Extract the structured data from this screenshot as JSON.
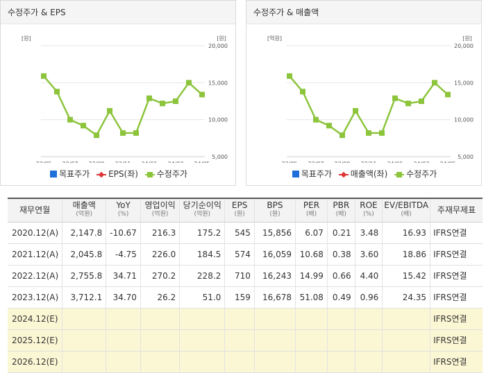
{
  "charts": {
    "eps": {
      "title": "수정주가 & EPS",
      "left_unit": "[원]",
      "right_unit": "[원]",
      "legend": [
        "목표주가",
        "EPS(좌)",
        "수정주가"
      ]
    },
    "sales": {
      "title": "수정주가 & 매출액",
      "left_unit": "[억원]",
      "right_unit": "[원]",
      "legend": [
        "목표주가",
        "매출액(좌)",
        "수정주가"
      ]
    }
  },
  "chart_data": {
    "type": "line",
    "x": [
      "23/05",
      "23/06",
      "23/07",
      "23/08",
      "23/09",
      "23/10",
      "23/11",
      "23/12",
      "24/01",
      "24/02",
      "24/03",
      "24/04",
      "24/05"
    ],
    "x_tick_labels": [
      "23/05",
      "23/07",
      "23/09",
      "23/11",
      "24/01",
      "24/03",
      "24/05"
    ],
    "y_right_ticks": [
      "20,000",
      "15,000",
      "10,000",
      "5,000"
    ],
    "ylim_right": [
      5000,
      20000
    ],
    "series": [
      {
        "name": "수정주가",
        "values": [
          15900,
          13800,
          10000,
          9200,
          7900,
          11200,
          8200,
          8200,
          12900,
          12200,
          12500,
          15000,
          13400
        ],
        "color": "#8cc43c",
        "axis": "right"
      }
    ],
    "grid": true,
    "legend_position": "bottom"
  },
  "table": {
    "headers": [
      {
        "label": "재무연월",
        "sub": ""
      },
      {
        "label": "매출액",
        "sub": "(억원)"
      },
      {
        "label": "YoY",
        "sub": "(%)"
      },
      {
        "label": "영업이익",
        "sub": "(억원)"
      },
      {
        "label": "당기순이익",
        "sub": "(억원)"
      },
      {
        "label": "EPS",
        "sub": "(원)"
      },
      {
        "label": "BPS",
        "sub": "(원)"
      },
      {
        "label": "PER",
        "sub": "(배)"
      },
      {
        "label": "PBR",
        "sub": "(배)"
      },
      {
        "label": "ROE",
        "sub": "(%)"
      },
      {
        "label": "EV/EBITDA",
        "sub": "(배)"
      },
      {
        "label": "주재무제표",
        "sub": ""
      }
    ],
    "rows": [
      [
        "2020.12(A)",
        "2,147.8",
        "-10.67",
        "216.3",
        "175.2",
        "545",
        "15,856",
        "6.07",
        "0.21",
        "3.48",
        "16.93",
        "IFRS연결"
      ],
      [
        "2021.12(A)",
        "2,045.8",
        "-4.75",
        "226.0",
        "184.5",
        "574",
        "16,059",
        "10.68",
        "0.38",
        "3.60",
        "18.86",
        "IFRS연결"
      ],
      [
        "2022.12(A)",
        "2,755.8",
        "34.71",
        "270.2",
        "228.2",
        "710",
        "16,243",
        "14.99",
        "0.66",
        "4.40",
        "15.42",
        "IFRS연결"
      ],
      [
        "2023.12(A)",
        "3,712.1",
        "34.70",
        "26.2",
        "51.0",
        "159",
        "16,678",
        "51.08",
        "0.49",
        "0.96",
        "24.35",
        "IFRS연결"
      ],
      [
        "2024.12(E)",
        "",
        "",
        "",
        "",
        "",
        "",
        "",
        "",
        "",
        "",
        "IFRS연결"
      ],
      [
        "2025.12(E)",
        "",
        "",
        "",
        "",
        "",
        "",
        "",
        "",
        "",
        "",
        "IFRS연결"
      ],
      [
        "2026.12(E)",
        "",
        "",
        "",
        "",
        "",
        "",
        "",
        "",
        "",
        "",
        "IFRS연결"
      ]
    ],
    "estimate_color": "#fbf6d3"
  }
}
